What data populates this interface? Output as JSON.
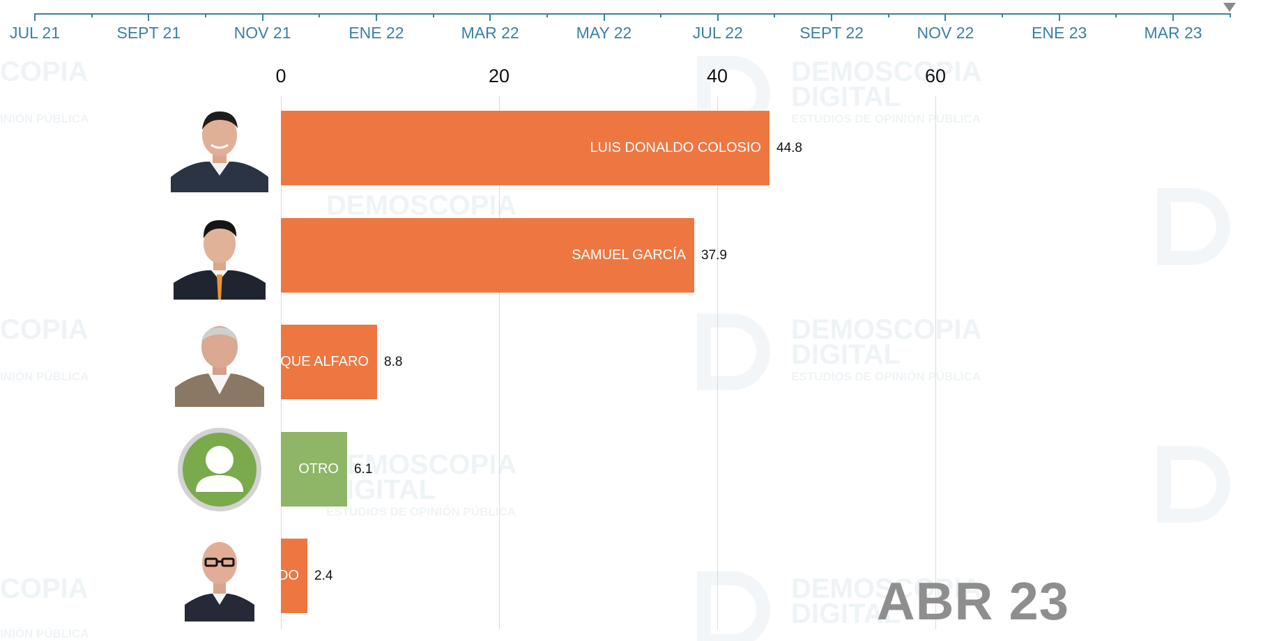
{
  "timeline": {
    "labels": [
      "JUL 21",
      "SEPT 21",
      "NOV 21",
      "ENE 22",
      "MAR 22",
      "MAY 22",
      "JUL 22",
      "SEPT 22",
      "NOV 22",
      "ENE 23",
      "MAR 23"
    ],
    "current_period": "ABR 23"
  },
  "colors": {
    "orange_bar": "#ee7741",
    "green_bar": "#8fb567",
    "timeline": "#3a7fa6",
    "gridline": "#d9d9d9",
    "period_label": "#8e8e8e"
  },
  "chart_data": {
    "type": "bar",
    "orientation": "horizontal",
    "categories": [
      "LUIS DONALDO COLOSIO",
      "SAMUEL GARCÍA",
      "RIQUE ALFARO",
      "OTRO",
      "DO"
    ],
    "values": [
      44.8,
      37.9,
      8.8,
      6.1,
      2.4
    ],
    "value_labels": [
      "44.8",
      "37.9",
      "8.8",
      "6.1",
      "2.4"
    ],
    "bar_colors": [
      "#ee7741",
      "#ee7741",
      "#ee7741",
      "#8fb567",
      "#ee7741"
    ],
    "x_ticks": [
      "0",
      "20",
      "40",
      "60"
    ],
    "xlim": [
      0,
      90
    ],
    "title": "",
    "xlabel": "",
    "ylabel": "",
    "grid": true
  },
  "watermark_text": [
    "DEMOSCOPIA",
    "DIGITAL",
    "ESTUDIOS DE OPINIÓN PÚBLICA",
    "COPIA",
    "INIÓN PÚBLICA"
  ]
}
